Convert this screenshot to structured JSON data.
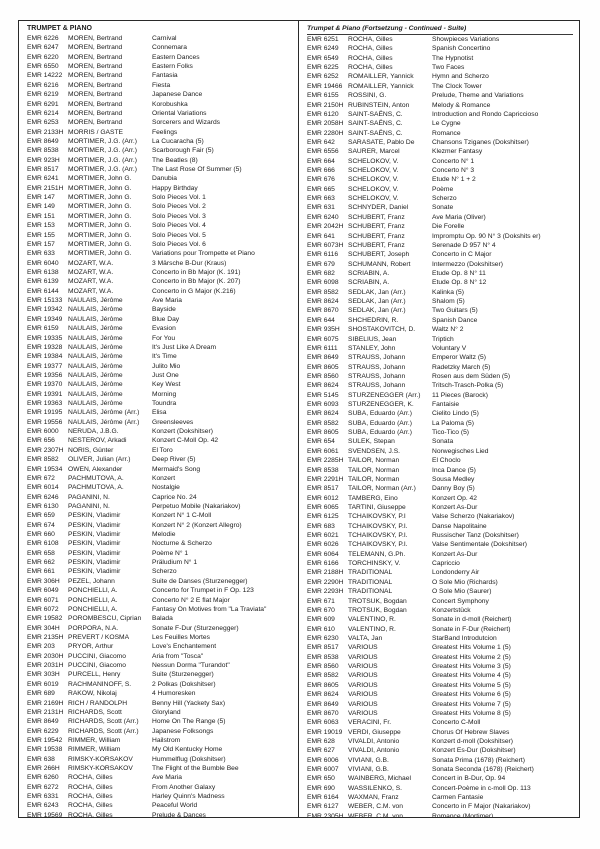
{
  "catalog": {
    "columns": [
      {
        "header": "TRUMPET & PIANO",
        "rows": [
          [
            "EMR 6226",
            "MOREN, Bertrand",
            "Carnival"
          ],
          [
            "EMR 6247",
            "MOREN, Bertrand",
            "Connemara"
          ],
          [
            "EMR 6220",
            "MOREN, Bertrand",
            "Eastern Dances"
          ],
          [
            "EMR 6550",
            "MOREN, Bertrand",
            "Eastern Folks"
          ],
          [
            "EMR 14222",
            "MOREN, Bertrand",
            "Fantasia"
          ],
          [
            "EMR 6216",
            "MOREN, Bertrand",
            "Fiesta"
          ],
          [
            "EMR 6219",
            "MOREN, Bertrand",
            "Japanese Dance"
          ],
          [
            "EMR 6291",
            "MOREN, Bertrand",
            "Korobushka"
          ],
          [
            "EMR 6214",
            "MOREN, Bertrand",
            "Oriental Variations"
          ],
          [
            "EMR 6253",
            "MOREN, Bertrand",
            "Sorcerers and Wizards"
          ],
          [
            "EMR 2133H",
            "MORRIS / GASTE",
            "Feelings"
          ],
          [
            "EMR 8649",
            "MORTIMER, J.G. (Arr.)",
            "La Cucaracha (5)"
          ],
          [
            "EMR 8538",
            "MORTIMER, J.G. (Arr.)",
            "Scarborough Fair (5)"
          ],
          [
            "EMR 923H",
            "MORTIMER, J.G. (Arr.)",
            "The Beatles (8)"
          ],
          [
            "EMR 8517",
            "MORTIMER, J.G. (Arr.)",
            "The Last Rose Of Summer (5)"
          ],
          [
            "EMR 6241",
            "MORTIMER, John G.",
            "Danubia"
          ],
          [
            "EMR 2151H",
            "MORTIMER, John G.",
            "Happy Birthday"
          ],
          [
            "EMR 147",
            "MORTIMER, John G.",
            "Solo Pieces Vol. 1"
          ],
          [
            "EMR 149",
            "MORTIMER, John G.",
            "Solo Pieces Vol. 2"
          ],
          [
            "EMR 151",
            "MORTIMER, John G.",
            "Solo Pieces Vol. 3"
          ],
          [
            "EMR 153",
            "MORTIMER, John G.",
            "Solo Pieces Vol. 4"
          ],
          [
            "EMR 155",
            "MORTIMER, John G.",
            "Solo Pieces Vol. 5"
          ],
          [
            "EMR 157",
            "MORTIMER, John G.",
            "Solo Pieces Vol. 6"
          ],
          [
            "EMR 633",
            "MORTIMER, John G.",
            "Variations pour Trompette et Piano"
          ],
          [
            "EMR 6040",
            "MOZART, W.A.",
            "3 Märsche B-Dur (Kraus)"
          ],
          [
            "EMR 6138",
            "MOZART, W.A.",
            "Concerto in Bb Major (K. 191)"
          ],
          [
            "EMR 6139",
            "MOZART, W.A.",
            "Concerto in Bb Major (K. 207)"
          ],
          [
            "EMR 6144",
            "MOZART, W.A.",
            "Concerto in G Major (K.216)"
          ],
          [
            "EMR 15133",
            "NAULAIS, Jérôme",
            "Ave Maria"
          ],
          [
            "EMR 19342",
            "NAULAIS, Jérôme",
            "Bayside"
          ],
          [
            "EMR 19349",
            "NAULAIS, Jérôme",
            "Blue Day"
          ],
          [
            "EMR 6159",
            "NAULAIS, Jérôme",
            "Evasion"
          ],
          [
            "EMR 19335",
            "NAULAIS, Jérôme",
            "For You"
          ],
          [
            "EMR 19328",
            "NAULAIS, Jérôme",
            "It's Just Like A Dream"
          ],
          [
            "EMR 19384",
            "NAULAIS, Jérôme",
            "It's Time"
          ],
          [
            "EMR 19377",
            "NAULAIS, Jérôme",
            "Julito Mio"
          ],
          [
            "EMR 19356",
            "NAULAIS, Jérôme",
            "Just One"
          ],
          [
            "EMR 19370",
            "NAULAIS, Jérôme",
            "Key West"
          ],
          [
            "EMR 19391",
            "NAULAIS, Jérôme",
            "Morning"
          ],
          [
            "EMR 19363",
            "NAULAIS, Jérôme",
            "Toundra"
          ],
          [
            "EMR 19195",
            "NAULAIS, Jérôme (Arr.)",
            "Elisa"
          ],
          [
            "EMR 19556",
            "NAULAIS, Jérôme (Arr.)",
            "Greensleeves"
          ],
          [
            "EMR 6000",
            "NERUDA, J.B.G.",
            "Konzert (Dokshitser)"
          ],
          [
            "EMR 656",
            "NESTEROV, Arkadi",
            "Konzert C-Moll Op. 42"
          ],
          [
            "EMR 2307H",
            "NORIS, Günter",
            "El Toro"
          ],
          [
            "EMR 8582",
            "OLIVER, Julian (Arr.)",
            "Deep River (5)"
          ],
          [
            "EMR 19534",
            "OWEN, Alexander",
            "Mermaid's Song"
          ],
          [
            "EMR 672",
            "PACHMUTOVA, A.",
            "Konzert"
          ],
          [
            "EMR 6014",
            "PACHMUTOVA, A.",
            "Nostalgie"
          ],
          [
            "EMR 6246",
            "PAGANINI, N.",
            "Caprice No. 24"
          ],
          [
            "EMR 6130",
            "PAGANINI, N.",
            "Perpetuo Mobile (Nakariakov)"
          ],
          [
            "EMR 659",
            "PESKIN, Vladimir",
            "Konzert N° 1 C-Moll"
          ],
          [
            "EMR 674",
            "PESKIN, Vladimir",
            "Konzert N° 2 (Konzert Allegro)"
          ],
          [
            "EMR 660",
            "PESKIN, Vladimir",
            "Melodie"
          ],
          [
            "EMR 6108",
            "PESKIN, Vladimir",
            "Nocturne & Scherzo"
          ],
          [
            "EMR 658",
            "PESKIN, Vladimir",
            "Poème N° 1"
          ],
          [
            "EMR 662",
            "PESKIN, Vladimir",
            "Präludium N° 1"
          ],
          [
            "EMR 661",
            "PESKIN, Vladimir",
            "Scherzo"
          ],
          [
            "EMR 306H",
            "PEZEL, Johann",
            "Suite de Danses (Sturzenegger)"
          ],
          [
            "EMR 6049",
            "PONCHIELLI, A.",
            "Concerto for Trumpet in F Op. 123"
          ],
          [
            "EMR 6071",
            "PONCHIELLI, A.",
            "Concerto N° 2 E flat Major"
          ],
          [
            "EMR 6072",
            "PONCHIELLI, A.",
            "Fantasy On Motives from \"La Traviata\""
          ],
          [
            "EMR 19582",
            "POROMBESCU, Ciprian",
            "Balada"
          ],
          [
            "EMR 304H",
            "PORPORA, N.A.",
            "Sonate F-Dur (Sturzenegger)"
          ],
          [
            "EMR 2135H",
            "PREVERT / KOSMA",
            "Les Feuilles Mortes"
          ],
          [
            "EMR 203",
            "PRYOR, Arthur",
            "Love's Enchantement"
          ],
          [
            "EMR 2030H",
            "PUCCINI, Giacomo",
            "Aria from \"Tosca\""
          ],
          [
            "EMR 2031H",
            "PUCCINI, Giacomo",
            "Nessun Dorma \"Turandot\""
          ],
          [
            "EMR 303H",
            "PURCELL, Henry",
            "Suite (Sturzenegger)"
          ],
          [
            "EMR 6019",
            "RACHMANINOFF, S.",
            "2 Polkas (Dokshitser)"
          ],
          [
            "EMR 689",
            "RAKOW, Nikolaj",
            "4 Humoresken"
          ],
          [
            "EMR 2169H",
            "RICH / RANDOLPH",
            "Benny Hill (Yackety Sax)"
          ],
          [
            "EMR 2131H",
            "RICHARDS, Scott",
            "Gloryland"
          ],
          [
            "EMR 8649",
            "RICHARDS, Scott (Arr.)",
            "Home On The Range (5)"
          ],
          [
            "EMR 6229",
            "RICHARDS, Scott (Arr.)",
            "Japanese Folksongs"
          ],
          [
            "EMR 19542",
            "RIMMER, William",
            "Hailstrom"
          ],
          [
            "EMR 19538",
            "RIMMER, William",
            "My Old Kentucky Home"
          ],
          [
            "EMR 638",
            "RIMSKY-KORSAKOV",
            "Hummelflug (Dokshitser)"
          ],
          [
            "EMR 266H",
            "RIMSKY-KORSAKOV",
            "The Flight of the Bumble Bee"
          ],
          [
            "EMR 6260",
            "ROCHA, Gilles",
            "Ave Maria"
          ],
          [
            "EMR 6272",
            "ROCHA, Gilles",
            "From Another Galaxy"
          ],
          [
            "EMR 6331",
            "ROCHA, Gilles",
            "Harley Quinn's Madness"
          ],
          [
            "EMR 6243",
            "ROCHA, Gilles",
            "Peaceful World"
          ],
          [
            "EMR 19569",
            "ROCHA, Gilles",
            "Prelude & Dances"
          ]
        ]
      },
      {
        "header": "Trumpet & Piano (Fortsetzung - Continued - Suite)",
        "rows": [
          [
            "EMR 6251",
            "ROCHA, Gilles",
            "Showpieces Variations"
          ],
          [
            "EMR 6249",
            "ROCHA, Gilles",
            "Spanish Concertino"
          ],
          [
            "EMR 6549",
            "ROCHA, Gilles",
            "The Hypnotist"
          ],
          [
            "EMR 6225",
            "ROCHA, Gilles",
            "Two Faces"
          ],
          [
            "EMR 6252",
            "ROMAILLER, Yannick",
            "Hymn and Scherzo"
          ],
          [
            "EMR 19466",
            "ROMAILLER, Yannick",
            "The Clock Tower"
          ],
          [
            "EMR 6155",
            "ROSSINI, G.",
            "Prelude, Theme and Variations"
          ],
          [
            "EMR 2150H",
            "RUBINSTEIN, Anton",
            "Melody & Romance"
          ],
          [
            "EMR 6120",
            "SAINT-SAËNS, C.",
            "Introduction and Rondo Capriccioso"
          ],
          [
            "EMR 2058H",
            "SAINT-SAËNS, C.",
            "Le Cygne"
          ],
          [
            "EMR 2280H",
            "SAINT-SAËNS, C.",
            "Romance"
          ],
          [
            "EMR 642",
            "SARASATE, Pablo De",
            "Chansons Tziganes (Dokshitser)"
          ],
          [
            "EMR 6556",
            "SAURER, Marcel",
            "Klezmer Fantasy"
          ],
          [
            "EMR 664",
            "SCHELOKOV, V.",
            "Concerto N° 1"
          ],
          [
            "EMR 666",
            "SCHELOKOV, V.",
            "Concerto N° 3"
          ],
          [
            "EMR 676",
            "SCHELOKOV, V.",
            "Etude N° 1 + 2"
          ],
          [
            "EMR 665",
            "SCHELOKOV, V.",
            "Poème"
          ],
          [
            "EMR 663",
            "SCHELOKOV, V.",
            "Scherzo"
          ],
          [
            "EMR 631",
            "SCHNYDER, Daniel",
            "Sonate"
          ],
          [
            "EMR 6240",
            "SCHUBERT, Franz",
            "Ave Maria (Oliver)"
          ],
          [
            "EMR 2042H",
            "SCHUBERT, Franz",
            "Die Forelle"
          ],
          [
            "EMR 641",
            "SCHUBERT, Franz",
            "Impromptu Op. 90 N° 3 (Dokshits er)"
          ],
          [
            "EMR 6073H",
            "SCHUBERT, Franz",
            "Serenade D 957 N° 4"
          ],
          [
            "EMR 6116",
            "SCHUBERT, Joseph",
            "Concerto in C Major"
          ],
          [
            "EMR 679",
            "SCHUMANN, Robert",
            "Intermezzo (Dokshitser)"
          ],
          [
            "EMR 682",
            "SCRIABIN, A.",
            "Etude Op. 8 N° 11"
          ],
          [
            "EMR 6098",
            "SCRIABIN, A.",
            "Etude Op. 8 N° 12"
          ],
          [
            "EMR 8582",
            "SEDLAK, Jan (Arr.)",
            "Kalinka (5)"
          ],
          [
            "EMR 8624",
            "SEDLAK, Jan (Arr.)",
            "Shalom (5)"
          ],
          [
            "EMR 8670",
            "SEDLAK, Jan (Arr.)",
            "Two Guitars (5)"
          ],
          [
            "EMR 644",
            "SHCHEDRIN, R.",
            "Spanish Dance"
          ],
          [
            "EMR 935H",
            "SHOSTAKOVITCH, D.",
            "Waltz N° 2"
          ],
          [
            "EMR 6075",
            "SIBELIUS, Jean",
            "Triptich"
          ],
          [
            "EMR 6111",
            "STANLEY, John",
            "Voluntary V"
          ],
          [
            "EMR 8649",
            "STRAUSS, Johann",
            "Emperor Waltz (5)"
          ],
          [
            "EMR 8605",
            "STRAUSS, Johann",
            "Radetzky March (5)"
          ],
          [
            "EMR 8560",
            "STRAUSS, Johann",
            "Rosen aus dem Süden (5)"
          ],
          [
            "EMR 8624",
            "STRAUSS, Johann",
            "Tritsch-Trasch-Polka (5)"
          ],
          [
            "EMR 5145",
            "STURZENEGGER (Arr.)",
            "11 Pieces (Barock)"
          ],
          [
            "EMR 6093",
            "STURZENEGGER, K.",
            "Fantaisie"
          ],
          [
            "EMR 8624",
            "SUBA, Eduardo (Arr.)",
            "Cielito Lindo (5)"
          ],
          [
            "EMR 8582",
            "SUBA, Eduardo (Arr.)",
            "La Paloma (5)"
          ],
          [
            "EMR 8605",
            "SUBA, Eduardo (Arr.)",
            "Tico-Tico (5)"
          ],
          [
            "EMR 654",
            "SULEK, Stepan",
            "Sonata"
          ],
          [
            "EMR 6061",
            "SVENDSEN, J.S.",
            "Norwegisches Lied"
          ],
          [
            "EMR 2285H",
            "TAILOR, Norman",
            "El Choclo"
          ],
          [
            "EMR 8538",
            "TAILOR, Norman",
            "Inca Dance (5)"
          ],
          [
            "EMR 2291H",
            "TAILOR, Norman",
            "Sousa Medley"
          ],
          [
            "EMR 8517",
            "TAILOR, Norman (Arr.)",
            "Danny Boy (5)"
          ],
          [
            "EMR 6012",
            "TAMBERG, Eino",
            "Konzert Op. 42"
          ],
          [
            "EMR 6065",
            "TARTINI, Giuseppe",
            "Konzert As-Dur"
          ],
          [
            "EMR 6125",
            "TCHAIKOVSKY, P.I",
            "Valse Scherzo (Nakariakov)"
          ],
          [
            "EMR 683",
            "TCHAIKOVSKY, P.I.",
            "Danse Napolitaine"
          ],
          [
            "EMR 6021",
            "TCHAIKOVSKY, P.I.",
            "Russischer Tanz (Dokshitser)"
          ],
          [
            "EMR 6026",
            "TCHAIKOVSKY, P.I.",
            "Valse Sentimentale (Dokshitser)"
          ],
          [
            "EMR 6064",
            "TELEMANN, G.Ph.",
            "Konzert As-Dur"
          ],
          [
            "EMR 6166",
            "TORCHINSKY, V.",
            "Capriccio"
          ],
          [
            "EMR 2188H",
            "TRADITIONAL",
            "Londonderry Air"
          ],
          [
            "EMR 2290H",
            "TRADITIONAL",
            "O Sole Mio (Richards)"
          ],
          [
            "EMR 2293H",
            "TRADITIONAL",
            "O Sole Mio (Saurer)"
          ],
          [
            "EMR 671",
            "TROTSUK, Bogdan",
            "Concert Symphony"
          ],
          [
            "EMR 670",
            "TROTSUK, Bogdan",
            "Konzertstück"
          ],
          [
            "EMR 609",
            "VALENTINO, R.",
            "Sonate in d-moll (Reichert)"
          ],
          [
            "EMR 610",
            "VALENTINO, R.",
            "Sonate in F-Dur (Reichert)"
          ],
          [
            "EMR 6230",
            "VALTA, Jan",
            "StarBand Introdutcion"
          ],
          [
            "EMR 8517",
            "VARIOUS",
            "Greatest Hits Volume 1 (5)"
          ],
          [
            "EMR 8538",
            "VARIOUS",
            "Greatest Hits Volume 2 (5)"
          ],
          [
            "EMR 8560",
            "VARIOUS",
            "Greatest Hits Volume 3 (5)"
          ],
          [
            "EMR 8582",
            "VARIOUS",
            "Greatest Hits Volume 4 (5)"
          ],
          [
            "EMR 8605",
            "VARIOUS",
            "Greatest Hits Volume 5 (5)"
          ],
          [
            "EMR 8624",
            "VARIOUS",
            "Greatest Hits Volume 6 (5)"
          ],
          [
            "EMR 8649",
            "VARIOUS",
            "Greatest Hits Volume 7 (5)"
          ],
          [
            "EMR 8670",
            "VARIOUS",
            "Greatest Hits Volume 8 (5)"
          ],
          [
            "EMR 6063",
            "VERACINI, Fr.",
            "Concerto C-Moll"
          ],
          [
            "EMR 19019",
            "VERDI, Giuseppe",
            "Chorus Of Hebrew Slaves"
          ],
          [
            "EMR 628",
            "VIVALDI, Antonio",
            "Konzert d-moll (Dokshitser)"
          ],
          [
            "EMR 627",
            "VIVALDI, Antonio",
            "Konzert Es-Dur (Dokshitser)"
          ],
          [
            "EMR 6006",
            "VIVIANI, G.B.",
            "Sonata Prima (1678) (Reichert)"
          ],
          [
            "EMR 6007",
            "VIVIANI, G.B.",
            "Sonata Seconda (1678) (Reichert)"
          ],
          [
            "EMR 650",
            "WAINBERG, Michael",
            "Concert in B-Dur, Op. 94"
          ],
          [
            "EMR 690",
            "WASSILENKO, S.",
            "Concert-Poème in c-moll Op. 113"
          ],
          [
            "EMR 6164",
            "WAXMAN, Franz",
            "Carmen Fantasie"
          ],
          [
            "EMR 6127",
            "WEBER, C.M. von",
            "Concerto in F Major (Nakariakov)"
          ],
          [
            "EMR 2305H",
            "WEBER, C.M. von",
            "Romance (Mortimer)"
          ]
        ]
      }
    ]
  }
}
